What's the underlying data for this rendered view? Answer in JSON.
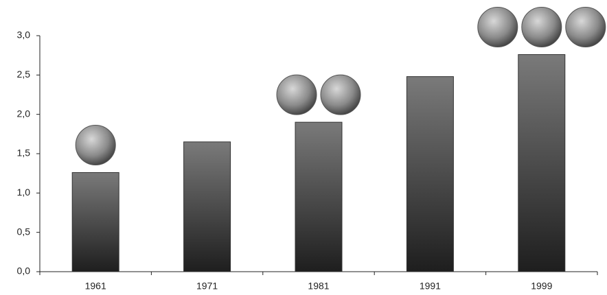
{
  "chart_data": {
    "type": "bar",
    "categories": [
      "1961",
      "1971",
      "1981",
      "1991",
      "1999"
    ],
    "values": [
      1.26,
      1.65,
      1.9,
      2.48,
      2.76
    ],
    "earths": [
      1,
      0,
      2,
      0,
      3
    ],
    "color": "#5a5a5a",
    "ylim": [
      0,
      3
    ],
    "yticks": [
      {
        "value": 0,
        "label": "0,0"
      },
      {
        "value": 0.5,
        "label": "0,5"
      },
      {
        "value": 1,
        "label": "1,0"
      },
      {
        "value": 1.5,
        "label": "1,5"
      },
      {
        "value": 2,
        "label": "2,0"
      },
      {
        "value": 2.5,
        "label": "2,5"
      },
      {
        "value": 3,
        "label": "3,0"
      }
    ],
    "grid": false
  }
}
